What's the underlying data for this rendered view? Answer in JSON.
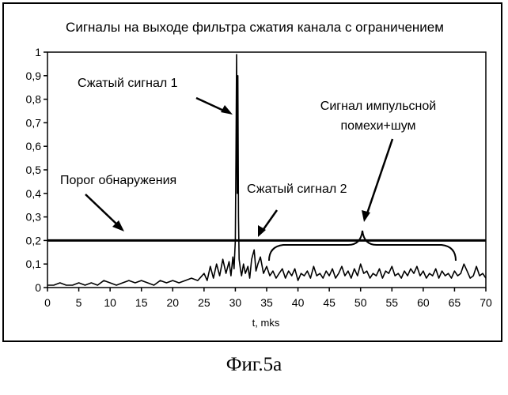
{
  "figure_caption": "Фиг.5а",
  "chart_data": {
    "type": "line",
    "title": "Сигналы на выходе фильтра сжатия канала с ограничением",
    "xlabel": "t, mks",
    "ylabel": "",
    "xlim": [
      0,
      70
    ],
    "ylim": [
      0,
      1
    ],
    "x_ticks": [
      "0",
      "5",
      "10",
      "15",
      "20",
      "25",
      "30",
      "35",
      "40",
      "45",
      "50",
      "55",
      "60",
      "65",
      "70"
    ],
    "y_ticks": [
      "0",
      "0,1",
      "0,2",
      "0,3",
      "0,4",
      "0,5",
      "0,6",
      "0,7",
      "0,8",
      "0,9",
      "1"
    ],
    "grid": false,
    "legend": "none",
    "threshold": {
      "y": 0.2,
      "label": "Порог обнаружения"
    },
    "annotations": [
      {
        "text": "Сжатый сигнал 1",
        "x": 30.3,
        "y": 0.98
      },
      {
        "text": "Сжатый сигнал 2",
        "x": 33.5,
        "y": 0.17
      },
      {
        "text": "Сигнал импульсной",
        "x": 50,
        "y": 0.25
      },
      {
        "text": "помехи+шум",
        "x": 50,
        "y": 0.25
      }
    ],
    "series": [
      {
        "x": [
          0,
          1,
          2,
          3,
          4,
          5,
          6,
          7,
          8,
          9,
          10,
          11,
          12,
          13,
          14,
          15,
          16,
          17,
          18,
          19,
          20,
          21,
          22,
          23,
          24,
          25,
          25.5,
          26,
          26.5,
          27,
          27.5,
          28,
          28.5,
          29,
          29.3,
          29.6,
          29.8,
          30,
          30.1,
          30.2,
          30.3,
          30.4,
          30.5,
          30.6,
          30.8,
          31,
          31.3,
          31.6,
          32,
          32.3,
          32.6,
          33,
          33.3,
          33.6,
          34,
          34.5,
          35,
          35.5,
          36,
          36.5,
          37,
          37.5,
          38,
          38.5,
          39,
          39.5,
          40,
          40.5,
          41,
          41.5,
          42,
          42.5,
          43,
          43.5,
          44,
          44.5,
          45,
          45.5,
          46,
          46.5,
          47,
          47.5,
          48,
          48.5,
          49,
          49.5,
          50,
          50.5,
          51,
          51.5,
          52,
          52.5,
          53,
          53.5,
          54,
          54.5,
          55,
          55.5,
          56,
          56.5,
          57,
          57.5,
          58,
          58.5,
          59,
          59.5,
          60,
          60.5,
          61,
          61.5,
          62,
          62.5,
          63,
          63.5,
          64,
          64.5,
          65,
          65.5,
          66,
          66.5,
          67,
          67.5,
          68,
          68.5,
          69,
          69.5,
          70
        ],
        "y": [
          0.01,
          0.01,
          0.02,
          0.01,
          0.01,
          0.02,
          0.01,
          0.02,
          0.01,
          0.03,
          0.02,
          0.01,
          0.02,
          0.03,
          0.02,
          0.03,
          0.02,
          0.01,
          0.03,
          0.02,
          0.03,
          0.02,
          0.03,
          0.04,
          0.03,
          0.06,
          0.03,
          0.09,
          0.04,
          0.1,
          0.05,
          0.12,
          0.06,
          0.11,
          0.05,
          0.13,
          0.08,
          0.2,
          0.55,
          0.99,
          0.4,
          0.9,
          0.3,
          0.12,
          0.08,
          0.05,
          0.1,
          0.06,
          0.09,
          0.04,
          0.12,
          0.16,
          0.07,
          0.1,
          0.13,
          0.06,
          0.09,
          0.05,
          0.07,
          0.04,
          0.06,
          0.08,
          0.04,
          0.07,
          0.05,
          0.08,
          0.03,
          0.06,
          0.05,
          0.07,
          0.04,
          0.09,
          0.05,
          0.06,
          0.04,
          0.07,
          0.05,
          0.08,
          0.04,
          0.06,
          0.09,
          0.05,
          0.07,
          0.04,
          0.08,
          0.05,
          0.1,
          0.06,
          0.07,
          0.04,
          0.06,
          0.05,
          0.08,
          0.04,
          0.07,
          0.06,
          0.09,
          0.05,
          0.06,
          0.04,
          0.07,
          0.05,
          0.08,
          0.06,
          0.09,
          0.05,
          0.07,
          0.04,
          0.06,
          0.05,
          0.08,
          0.04,
          0.07,
          0.05,
          0.06,
          0.04,
          0.07,
          0.05,
          0.06,
          0.1,
          0.07,
          0.04,
          0.05,
          0.09,
          0.05,
          0.06,
          0.04
        ]
      }
    ]
  }
}
